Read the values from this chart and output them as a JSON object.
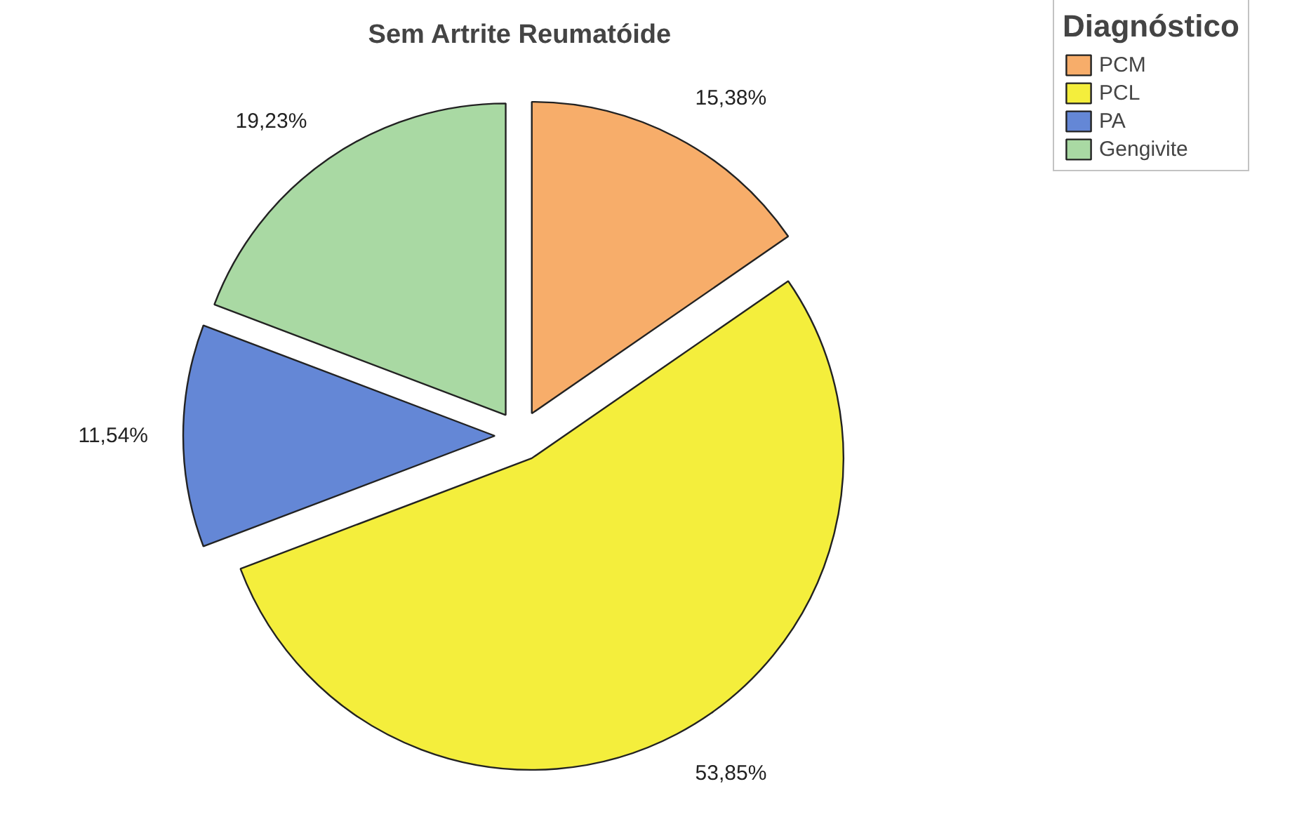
{
  "chart_data": {
    "type": "pie",
    "title": "Sem Artrite Reumatóide",
    "legend_title": "Diagnóstico",
    "legend": "right",
    "categories": [
      "PCM",
      "PCL",
      "PA",
      "Gengivite"
    ],
    "values": [
      15.38,
      53.85,
      11.54,
      19.23
    ],
    "value_labels": [
      "15,38%",
      "53,85%",
      "11,54%",
      "19,23%"
    ],
    "colors": [
      "#f7ad6a",
      "#f4ee3c",
      "#6487d6",
      "#a9d9a3"
    ]
  }
}
